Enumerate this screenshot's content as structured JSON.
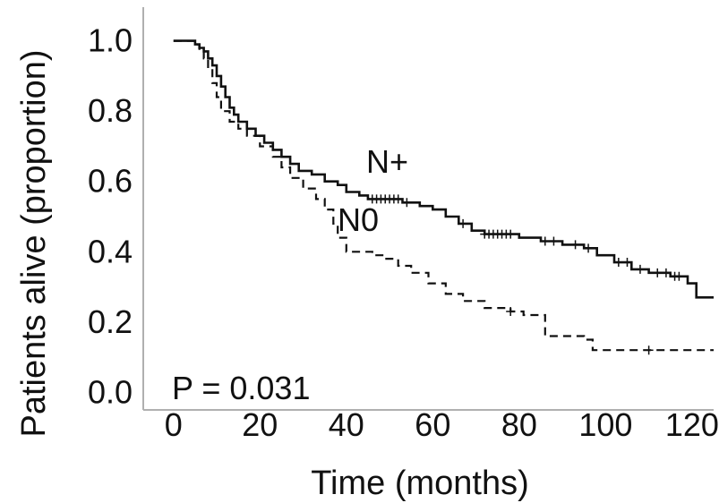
{
  "chart_data": {
    "type": "line",
    "subtype": "kaplan-meier",
    "xlabel": "Time (months)",
    "ylabel": "Patients alive (proportion)",
    "xlim": [
      -7,
      125
    ],
    "ylim": [
      -0.05,
      1.05
    ],
    "xticks": [
      0,
      20,
      40,
      60,
      80,
      100,
      120
    ],
    "yticks": [
      0.0,
      0.2,
      0.4,
      0.6,
      0.8,
      1.0
    ],
    "xtick_labels": [
      "0",
      "20",
      "40",
      "60",
      "80",
      "100",
      "120"
    ],
    "ytick_labels": [
      "0.0",
      "0.2",
      "0.4",
      "0.6",
      "0.8",
      "1.0"
    ],
    "grid": false,
    "annotation": "P = 0.031",
    "series": [
      {
        "name": "N+",
        "line_style": "solid",
        "color": "#111111",
        "steps": [
          [
            0,
            1.0
          ],
          [
            5,
            0.99
          ],
          [
            6,
            0.98
          ],
          [
            7,
            0.97
          ],
          [
            8,
            0.95
          ],
          [
            9,
            0.93
          ],
          [
            10,
            0.9
          ],
          [
            11,
            0.87
          ],
          [
            12,
            0.84
          ],
          [
            13,
            0.81
          ],
          [
            14,
            0.79
          ],
          [
            15,
            0.77
          ],
          [
            17,
            0.75
          ],
          [
            19,
            0.73
          ],
          [
            21,
            0.71
          ],
          [
            23,
            0.69
          ],
          [
            25,
            0.67
          ],
          [
            27,
            0.65
          ],
          [
            29,
            0.63
          ],
          [
            32,
            0.62
          ],
          [
            35,
            0.6
          ],
          [
            38,
            0.59
          ],
          [
            40,
            0.57
          ],
          [
            43,
            0.56
          ],
          [
            45,
            0.55
          ],
          [
            53,
            0.54
          ],
          [
            57,
            0.53
          ],
          [
            60,
            0.52
          ],
          [
            63,
            0.5
          ],
          [
            66,
            0.48
          ],
          [
            69,
            0.46
          ],
          [
            72,
            0.45
          ],
          [
            80,
            0.44
          ],
          [
            85,
            0.43
          ],
          [
            90,
            0.42
          ],
          [
            95,
            0.41
          ],
          [
            98,
            0.39
          ],
          [
            102,
            0.37
          ],
          [
            106,
            0.35
          ],
          [
            110,
            0.34
          ],
          [
            115,
            0.33
          ],
          [
            119,
            0.31
          ],
          [
            121,
            0.27
          ],
          [
            125,
            0.27
          ]
        ],
        "censored": [
          [
            46,
            0.55
          ],
          [
            47,
            0.55
          ],
          [
            48,
            0.55
          ],
          [
            49,
            0.55
          ],
          [
            50,
            0.55
          ],
          [
            51,
            0.55
          ],
          [
            52,
            0.55
          ],
          [
            54,
            0.54
          ],
          [
            67,
            0.48
          ],
          [
            72,
            0.45
          ],
          [
            73,
            0.45
          ],
          [
            74,
            0.45
          ],
          [
            75,
            0.45
          ],
          [
            76,
            0.45
          ],
          [
            77,
            0.45
          ],
          [
            78,
            0.45
          ],
          [
            86,
            0.43
          ],
          [
            88,
            0.43
          ],
          [
            93,
            0.42
          ],
          [
            96,
            0.41
          ],
          [
            103,
            0.37
          ],
          [
            105,
            0.37
          ],
          [
            108,
            0.35
          ],
          [
            112,
            0.34
          ],
          [
            114,
            0.34
          ],
          [
            116,
            0.33
          ],
          [
            117,
            0.33
          ]
        ]
      },
      {
        "name": "N0",
        "line_style": "dashed",
        "color": "#111111",
        "steps": [
          [
            0,
            1.0
          ],
          [
            5,
            0.99
          ],
          [
            6,
            0.97
          ],
          [
            7,
            0.95
          ],
          [
            8,
            0.92
          ],
          [
            9,
            0.88
          ],
          [
            10,
            0.84
          ],
          [
            11,
            0.8
          ],
          [
            13,
            0.77
          ],
          [
            15,
            0.75
          ],
          [
            17,
            0.73
          ],
          [
            20,
            0.7
          ],
          [
            23,
            0.67
          ],
          [
            25,
            0.64
          ],
          [
            27,
            0.61
          ],
          [
            30,
            0.58
          ],
          [
            33,
            0.55
          ],
          [
            35,
            0.52
          ],
          [
            37,
            0.48
          ],
          [
            38,
            0.44
          ],
          [
            40,
            0.4
          ],
          [
            46,
            0.39
          ],
          [
            49,
            0.38
          ],
          [
            52,
            0.36
          ],
          [
            55,
            0.34
          ],
          [
            59,
            0.31
          ],
          [
            63,
            0.28
          ],
          [
            67,
            0.26
          ],
          [
            72,
            0.24
          ],
          [
            78,
            0.23
          ],
          [
            81,
            0.22
          ],
          [
            86,
            0.16
          ],
          [
            95,
            0.15
          ],
          [
            97,
            0.12
          ],
          [
            125,
            0.12
          ]
        ],
        "censored": [
          [
            78,
            0.23
          ],
          [
            110,
            0.12
          ]
        ]
      }
    ]
  }
}
